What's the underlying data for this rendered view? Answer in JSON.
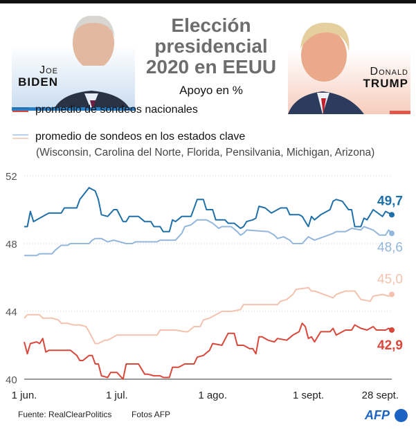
{
  "header": {
    "title_lines": [
      "Elección",
      "presidencial",
      "2020 en EEUU"
    ],
    "subtitle": "Apoyo en %",
    "candidates": [
      {
        "first": "Joe",
        "last": "Biden",
        "color": "#2b7fc4"
      },
      {
        "first": "Donald",
        "last": "Trump",
        "color": "#e0574a"
      }
    ]
  },
  "legend": {
    "national": "promedio de sondeos nacionales",
    "swing": "promedio de sondeos en los estados clave",
    "swing_states": "(Wisconsin, Carolina del Norte, Florida, Pensilvania, Michigan, Arizona)"
  },
  "footer": {
    "source": "Fuente: RealClearPolitics",
    "photos": "Fotos AFP",
    "logo": "AFP"
  },
  "chart_data": {
    "type": "line",
    "ylim": [
      40,
      52
    ],
    "yticks": [
      "40",
      "44",
      "48",
      "52"
    ],
    "ytick_values": [
      40,
      44,
      48,
      52
    ],
    "xlim": [
      "2020-06-01",
      "2020-09-28"
    ],
    "xticks": [
      {
        "date": "2020-06-01",
        "label": "1 jun."
      },
      {
        "date": "2020-07-01",
        "label": "1 jul."
      },
      {
        "date": "2020-08-01",
        "label": "1 ago."
      },
      {
        "date": "2020-09-01",
        "label": "1 sept."
      },
      {
        "date": "2020-09-28",
        "label": "28 sept."
      }
    ],
    "grid": "horizontal dotted",
    "series": [
      {
        "id": "biden-national",
        "color": "#1f6fa8",
        "end_label": "49,7",
        "points": [
          [
            "06-01",
            49.0
          ],
          [
            "06-02",
            49.0
          ],
          [
            "06-03",
            49.9
          ],
          [
            "06-04",
            49.3
          ],
          [
            "06-07",
            49.6
          ],
          [
            "06-09",
            49.8
          ],
          [
            "06-13",
            49.8
          ],
          [
            "06-14",
            50.1
          ],
          [
            "06-18",
            50.1
          ],
          [
            "06-19",
            50.6
          ],
          [
            "06-22",
            51.3
          ],
          [
            "06-24",
            51.1
          ],
          [
            "06-25",
            50.6
          ],
          [
            "06-26",
            49.7
          ],
          [
            "06-28",
            49.6
          ],
          [
            "06-30",
            50.0
          ],
          [
            "07-01",
            50.0
          ],
          [
            "07-03",
            49.3
          ],
          [
            "07-04",
            49.3
          ],
          [
            "07-05",
            49.6
          ],
          [
            "07-08",
            49.6
          ],
          [
            "07-10",
            49.3
          ],
          [
            "07-12",
            49.3
          ],
          [
            "07-13",
            49.0
          ],
          [
            "07-15",
            49.0
          ],
          [
            "07-16",
            48.7
          ],
          [
            "07-18",
            48.7
          ],
          [
            "07-19",
            49.4
          ],
          [
            "07-20",
            49.3
          ],
          [
            "07-22",
            49.6
          ],
          [
            "07-25",
            49.6
          ],
          [
            "07-27",
            50.6
          ],
          [
            "07-29",
            50.6
          ],
          [
            "07-30",
            50.0
          ],
          [
            "08-01",
            50.0
          ],
          [
            "08-02",
            49.4
          ],
          [
            "08-05",
            49.4
          ],
          [
            "08-06",
            49.2
          ],
          [
            "08-08",
            49.2
          ],
          [
            "08-10",
            48.9
          ],
          [
            "08-11",
            49.0
          ],
          [
            "08-12",
            49.3
          ],
          [
            "08-14",
            49.4
          ],
          [
            "08-15",
            49.5
          ],
          [
            "08-16",
            50.2
          ],
          [
            "08-18",
            50.1
          ],
          [
            "08-20",
            49.8
          ],
          [
            "08-22",
            50.0
          ],
          [
            "08-23",
            50.1
          ],
          [
            "08-25",
            50.1
          ],
          [
            "08-26",
            49.7
          ],
          [
            "08-29",
            49.7
          ],
          [
            "08-30",
            49.6
          ],
          [
            "09-01",
            49.0
          ],
          [
            "09-02",
            49.6
          ],
          [
            "09-03",
            49.4
          ],
          [
            "09-05",
            49.7
          ],
          [
            "09-06",
            49.8
          ],
          [
            "09-08",
            50.0
          ],
          [
            "09-09",
            50.5
          ],
          [
            "09-10",
            50.6
          ],
          [
            "09-12",
            50.5
          ],
          [
            "09-14",
            50.0
          ],
          [
            "09-15",
            50.0
          ],
          [
            "09-16",
            49.0
          ],
          [
            "09-18",
            49.0
          ],
          [
            "09-19",
            49.5
          ],
          [
            "09-20",
            49.4
          ],
          [
            "09-22",
            50.0
          ],
          [
            "09-25",
            49.6
          ],
          [
            "09-26",
            49.9
          ],
          [
            "09-27",
            49.8
          ],
          [
            "09-28",
            49.7
          ]
        ]
      },
      {
        "id": "biden-swing",
        "color": "#93b6dc",
        "end_label": "48,6",
        "points": [
          [
            "06-01",
            47.3
          ],
          [
            "06-05",
            47.3
          ],
          [
            "06-06",
            47.4
          ],
          [
            "06-10",
            47.4
          ],
          [
            "06-11",
            47.6
          ],
          [
            "06-13",
            47.9
          ],
          [
            "06-15",
            47.9
          ],
          [
            "06-16",
            48.0
          ],
          [
            "06-22",
            48.0
          ],
          [
            "06-23",
            48.2
          ],
          [
            "06-24",
            48.3
          ],
          [
            "06-26",
            48.3
          ],
          [
            "06-28",
            48.1
          ],
          [
            "06-30",
            48.2
          ],
          [
            "07-04",
            48.0
          ],
          [
            "07-06",
            48.0
          ],
          [
            "07-07",
            48.1
          ],
          [
            "07-14",
            48.1
          ],
          [
            "07-15",
            48.2
          ],
          [
            "07-20",
            48.2
          ],
          [
            "07-22",
            48.6
          ],
          [
            "07-23",
            49.0
          ],
          [
            "07-25",
            49.1
          ],
          [
            "07-27",
            49.4
          ],
          [
            "07-30",
            49.4
          ],
          [
            "08-01",
            49.2
          ],
          [
            "08-03",
            48.9
          ],
          [
            "08-04",
            49.0
          ],
          [
            "08-07",
            49.0
          ],
          [
            "08-09",
            48.7
          ],
          [
            "08-10",
            48.5
          ],
          [
            "08-11",
            48.6
          ],
          [
            "08-12",
            48.8
          ],
          [
            "08-19",
            48.7
          ],
          [
            "08-21",
            48.5
          ],
          [
            "08-22",
            48.3
          ],
          [
            "08-24",
            48.4
          ],
          [
            "08-26",
            48.2
          ],
          [
            "08-27",
            48.0
          ],
          [
            "08-30",
            48.0
          ],
          [
            "09-01",
            48.4
          ],
          [
            "09-03",
            48.2
          ],
          [
            "09-06",
            48.4
          ],
          [
            "09-09",
            48.6
          ],
          [
            "09-10",
            48.7
          ],
          [
            "09-13",
            48.7
          ],
          [
            "09-15",
            48.9
          ],
          [
            "09-18",
            48.8
          ],
          [
            "09-19",
            49.0
          ],
          [
            "09-22",
            48.8
          ],
          [
            "09-24",
            48.5
          ],
          [
            "09-26",
            48.5
          ],
          [
            "09-27",
            48.8
          ],
          [
            "09-28",
            48.6
          ]
        ]
      },
      {
        "id": "trump-swing",
        "color": "#f4c2ae",
        "end_label": "45,0",
        "points": [
          [
            "06-01",
            43.6
          ],
          [
            "06-02",
            43.8
          ],
          [
            "06-06",
            43.8
          ],
          [
            "06-07",
            43.6
          ],
          [
            "06-10",
            43.6
          ],
          [
            "06-12",
            43.5
          ],
          [
            "06-13",
            43.3
          ],
          [
            "06-15",
            43.3
          ],
          [
            "06-17",
            43.2
          ],
          [
            "06-19",
            43.2
          ],
          [
            "06-21",
            43.1
          ],
          [
            "06-22",
            42.8
          ],
          [
            "06-24",
            42.1
          ],
          [
            "06-25",
            42.1
          ],
          [
            "06-27",
            42.3
          ],
          [
            "06-28",
            42.3
          ],
          [
            "07-01",
            42.6
          ],
          [
            "07-14",
            42.6
          ],
          [
            "07-15",
            42.9
          ],
          [
            "07-20",
            42.9
          ],
          [
            "07-23",
            42.8
          ],
          [
            "07-24",
            42.8
          ],
          [
            "07-26",
            43.1
          ],
          [
            "07-28",
            43.1
          ],
          [
            "07-29",
            43.5
          ],
          [
            "07-31",
            43.6
          ],
          [
            "08-02",
            43.8
          ],
          [
            "08-04",
            44.0
          ],
          [
            "08-07",
            44.0
          ],
          [
            "08-10",
            44.1
          ],
          [
            "08-11",
            44.4
          ],
          [
            "08-22",
            44.4
          ],
          [
            "08-23",
            44.6
          ],
          [
            "08-25",
            44.7
          ],
          [
            "08-27",
            45.0
          ],
          [
            "08-28",
            45.3
          ],
          [
            "09-01",
            45.4
          ],
          [
            "09-02",
            45.2
          ],
          [
            "09-03",
            45.2
          ],
          [
            "09-06",
            45.0
          ],
          [
            "09-09",
            44.8
          ],
          [
            "09-10",
            45.0
          ],
          [
            "09-13",
            45.2
          ],
          [
            "09-16",
            45.2
          ],
          [
            "09-18",
            44.7
          ],
          [
            "09-21",
            44.6
          ],
          [
            "09-22",
            44.9
          ],
          [
            "09-25",
            45.0
          ],
          [
            "09-27",
            44.9
          ],
          [
            "09-28",
            45.0
          ]
        ]
      },
      {
        "id": "trump-national",
        "color": "#d9473a",
        "end_label": "42,9",
        "points": [
          [
            "06-01",
            42.2
          ],
          [
            "06-02",
            41.5
          ],
          [
            "06-03",
            42.1
          ],
          [
            "06-05",
            42.2
          ],
          [
            "06-06",
            42.1
          ],
          [
            "06-07",
            42.4
          ],
          [
            "06-08",
            41.6
          ],
          [
            "06-09",
            41.7
          ],
          [
            "06-16",
            41.7
          ],
          [
            "06-18",
            41.4
          ],
          [
            "06-19",
            41.1
          ],
          [
            "06-20",
            41.1
          ],
          [
            "06-22",
            41.4
          ],
          [
            "06-23",
            41.4
          ],
          [
            "06-24",
            40.9
          ],
          [
            "06-25",
            40.9
          ],
          [
            "06-26",
            40.2
          ],
          [
            "06-28",
            40.1
          ],
          [
            "06-29",
            40.4
          ],
          [
            "07-01",
            40.4
          ],
          [
            "07-03",
            40.0
          ],
          [
            "07-04",
            40.9
          ],
          [
            "07-08",
            40.9
          ],
          [
            "07-10",
            40.3
          ],
          [
            "07-11",
            40.3
          ],
          [
            "07-13",
            40.2
          ],
          [
            "07-15",
            40.2
          ],
          [
            "07-16",
            40.1
          ],
          [
            "07-18",
            40.1
          ],
          [
            "07-19",
            40.7
          ],
          [
            "07-21",
            40.7
          ],
          [
            "07-23",
            40.9
          ],
          [
            "07-26",
            40.9
          ],
          [
            "07-27",
            41.3
          ],
          [
            "07-29",
            41.4
          ],
          [
            "07-31",
            41.7
          ],
          [
            "08-01",
            42.1
          ],
          [
            "08-04",
            42.0
          ],
          [
            "08-06",
            42.7
          ],
          [
            "08-08",
            42.7
          ],
          [
            "08-09",
            42.0
          ],
          [
            "08-11",
            42.0
          ],
          [
            "08-13",
            41.8
          ],
          [
            "08-14",
            41.8
          ],
          [
            "08-15",
            41.5
          ],
          [
            "08-16",
            42.5
          ],
          [
            "08-17",
            42.5
          ],
          [
            "08-19",
            42.3
          ],
          [
            "08-21",
            42.2
          ],
          [
            "08-22",
            42.4
          ],
          [
            "08-25",
            42.3
          ],
          [
            "08-27",
            42.6
          ],
          [
            "08-29",
            42.8
          ],
          [
            "08-30",
            43.3
          ],
          [
            "08-31",
            43.1
          ],
          [
            "09-01",
            42.4
          ],
          [
            "09-02",
            42.5
          ],
          [
            "09-03",
            42.2
          ],
          [
            "09-05",
            42.8
          ],
          [
            "09-08",
            42.8
          ],
          [
            "09-09",
            43.0
          ],
          [
            "09-10",
            42.6
          ],
          [
            "09-13",
            42.9
          ],
          [
            "09-15",
            42.9
          ],
          [
            "09-16",
            43.2
          ],
          [
            "09-18",
            43.0
          ],
          [
            "09-20",
            42.9
          ],
          [
            "09-22",
            43.1
          ],
          [
            "09-23",
            42.9
          ],
          [
            "09-26",
            42.9
          ],
          [
            "09-27",
            43.0
          ],
          [
            "09-28",
            42.9
          ]
        ]
      }
    ]
  }
}
